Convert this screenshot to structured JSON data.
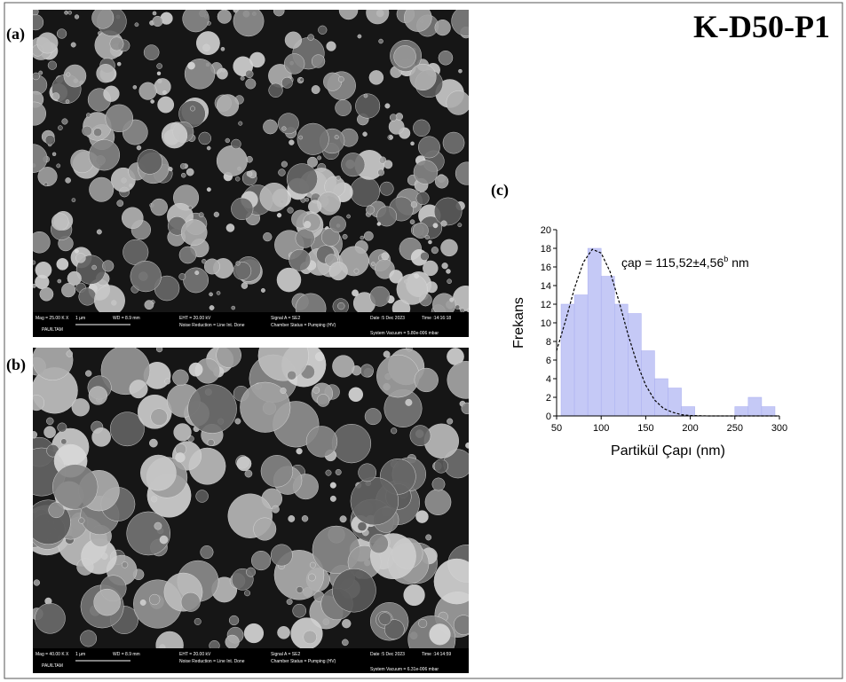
{
  "figure": {
    "title": "K-D50-P1",
    "panel_labels": [
      "(a)",
      "(b)",
      "(c)"
    ],
    "sem_images": [
      {
        "texts": [
          "Mag = 25.00 K X",
          "PAUILTAM",
          "1 µm",
          "WD = 8.9 mm",
          "EHT = 20.00 kV",
          "Noise Reduction = Line Int. Done",
          "Signal A = SE2",
          "Chamber Status = Pumping (HV)",
          "Date :5 Dec 2023",
          "Time :14:16:18",
          "System Vacuum = 5.80e-006 mbar"
        ]
      },
      {
        "texts": [
          "Mag = 40.00 K X",
          "PAUILTAM",
          "1 µm",
          "WD = 8.9 mm",
          "EHT = 20.00 kV",
          "Noise Reduction = Line Int. Done",
          "Signal A = SE2",
          "Chamber Status = Pumping (HV)",
          "Date :5 Dec 2023",
          "Time :14:14:59",
          "System Vacuum = 6.31e-006 mbar"
        ]
      }
    ]
  },
  "chart_data": {
    "type": "histogram",
    "annotation": {
      "text": "çap = 115,52±4,56",
      "superscript": "b",
      "unit": "nm"
    },
    "x_label": "Partikül Çapı (nm)",
    "y_label": "Frekans",
    "bins": [
      55,
      70,
      85,
      100,
      115,
      130,
      145,
      160,
      175,
      190,
      205,
      220,
      235,
      250,
      265,
      280,
      295
    ],
    "values": [
      12,
      13,
      18,
      15,
      12,
      11,
      7,
      4,
      3,
      1,
      0,
      0,
      0,
      1,
      2,
      1
    ],
    "color": "#c5c9f6",
    "edge_color": "#a9aef0",
    "fit": {
      "x": [
        50,
        60,
        70,
        80,
        90,
        100,
        110,
        120,
        130,
        140,
        150,
        160,
        170,
        180,
        190,
        200,
        220,
        250,
        300
      ],
      "y": [
        7,
        10.2,
        13.7,
        16.5,
        17.9,
        17.5,
        15.5,
        12.3,
        8.8,
        5.7,
        3.3,
        1.7,
        0.8,
        0.4,
        0.13,
        0.05,
        0,
        0,
        0
      ]
    },
    "xlim": [
      50,
      300
    ],
    "xticks": [
      50,
      100,
      150,
      200,
      250,
      300
    ],
    "ylim": [
      0,
      20
    ],
    "yticks": [
      0,
      2,
      4,
      6,
      8,
      10,
      12,
      14,
      16,
      18,
      20
    ]
  }
}
